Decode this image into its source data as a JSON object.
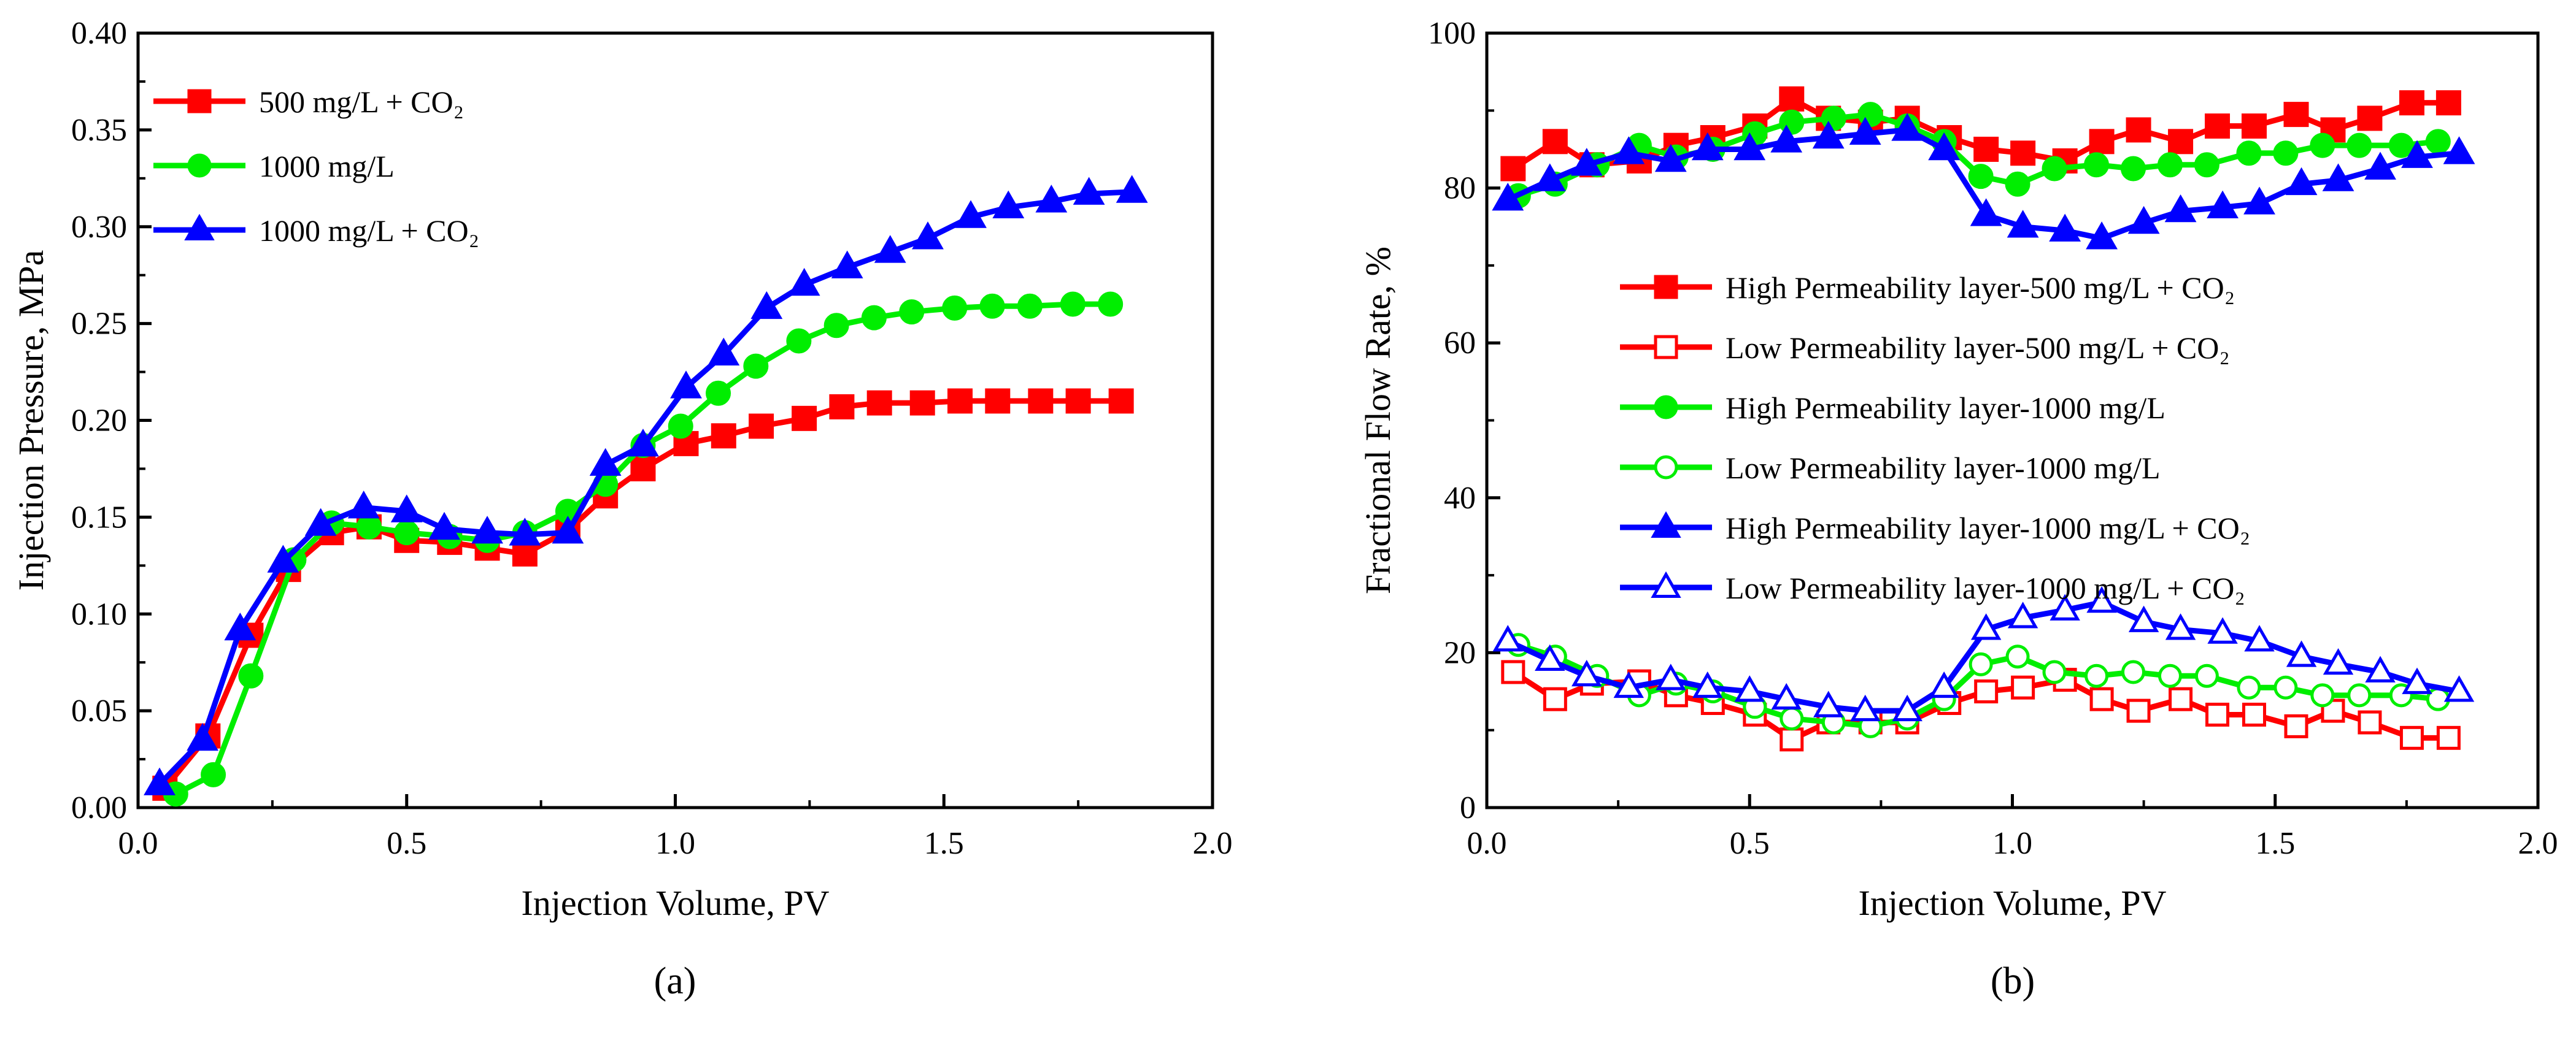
{
  "chart_data": [
    {
      "type": "line",
      "panel_label": "(a)",
      "xlabel": "Injection Volume, PV",
      "ylabel": "Injection Pressure, MPa",
      "xlim": [
        0,
        2.0
      ],
      "ylim": [
        0,
        0.4
      ],
      "xticks": [
        "0.0",
        "0.5",
        "1.0",
        "1.5",
        "2.0"
      ],
      "yticks": [
        "0.00",
        "0.05",
        "0.10",
        "0.15",
        "0.20",
        "0.25",
        "0.30",
        "0.35",
        "0.40"
      ],
      "legend_position": "top-left",
      "grid": false,
      "series": [
        {
          "name": "500 mg/L + CO₂",
          "color": "#ff0000",
          "marker": "square",
          "filled": true,
          "x": [
            0.05,
            0.13,
            0.21,
            0.28,
            0.36,
            0.43,
            0.5,
            0.58,
            0.65,
            0.72,
            0.8,
            0.87,
            0.94,
            1.02,
            1.09,
            1.16,
            1.24,
            1.31,
            1.38,
            1.46,
            1.53,
            1.6,
            1.68,
            1.75,
            1.83
          ],
          "y": [
            0.01,
            0.037,
            0.089,
            0.123,
            0.142,
            0.145,
            0.138,
            0.137,
            0.134,
            0.131,
            0.143,
            0.161,
            0.175,
            0.188,
            0.192,
            0.197,
            0.201,
            0.207,
            0.209,
            0.209,
            0.21,
            0.21,
            0.21,
            0.21,
            0.21
          ]
        },
        {
          "name": "1000 mg/L",
          "color": "#00ee00",
          "marker": "circle",
          "filled": true,
          "x": [
            0.07,
            0.14,
            0.21,
            0.29,
            0.36,
            0.43,
            0.5,
            0.58,
            0.65,
            0.72,
            0.8,
            0.87,
            0.94,
            1.01,
            1.08,
            1.15,
            1.23,
            1.3,
            1.37,
            1.44,
            1.52,
            1.59,
            1.66,
            1.74,
            1.81
          ],
          "y": [
            0.007,
            0.017,
            0.068,
            0.128,
            0.147,
            0.145,
            0.142,
            0.14,
            0.138,
            0.142,
            0.153,
            0.167,
            0.187,
            0.197,
            0.214,
            0.228,
            0.241,
            0.249,
            0.253,
            0.256,
            0.258,
            0.259,
            0.259,
            0.26,
            0.26
          ]
        },
        {
          "name": "1000 mg/L + CO₂",
          "color": "#0000ff",
          "marker": "triangle",
          "filled": true,
          "x": [
            0.04,
            0.12,
            0.19,
            0.27,
            0.34,
            0.42,
            0.5,
            0.57,
            0.65,
            0.72,
            0.8,
            0.87,
            0.94,
            1.02,
            1.09,
            1.17,
            1.24,
            1.32,
            1.4,
            1.47,
            1.55,
            1.62,
            1.7,
            1.77,
            1.85
          ],
          "y": [
            0.012,
            0.035,
            0.092,
            0.127,
            0.146,
            0.155,
            0.153,
            0.144,
            0.142,
            0.141,
            0.142,
            0.177,
            0.187,
            0.217,
            0.234,
            0.258,
            0.27,
            0.279,
            0.287,
            0.294,
            0.305,
            0.31,
            0.313,
            0.317,
            0.318
          ]
        }
      ]
    },
    {
      "type": "line",
      "panel_label": "(b)",
      "xlabel": "Injection Volume, PV",
      "ylabel": "Fractional Flow Rate, %",
      "xlim": [
        0,
        2.0
      ],
      "ylim": [
        0,
        100
      ],
      "xticks": [
        "0.0",
        "0.5",
        "1.0",
        "1.5",
        "2.0"
      ],
      "yticks": [
        "0",
        "20",
        "40",
        "60",
        "80",
        "100"
      ],
      "legend_position": "center-right",
      "grid": false,
      "series": [
        {
          "name": "High Permeability layer-500 mg/L + CO₂",
          "color": "#ff0000",
          "marker": "square",
          "filled": true,
          "x": [
            0.05,
            0.13,
            0.2,
            0.29,
            0.36,
            0.43,
            0.51,
            0.58,
            0.65,
            0.73,
            0.8,
            0.88,
            0.95,
            1.02,
            1.1,
            1.17,
            1.24,
            1.32,
            1.39,
            1.46,
            1.54,
            1.61,
            1.68,
            1.76,
            1.83
          ],
          "y": [
            82.5,
            86,
            83,
            83.5,
            85.5,
            86.5,
            88,
            91.5,
            89,
            88.5,
            89,
            86.5,
            85,
            84.5,
            83.5,
            86,
            87.5,
            86,
            88,
            88,
            89.5,
            87.5,
            89,
            91,
            91
          ]
        },
        {
          "name": "Low Permeability layer-500 mg/L + CO₂",
          "color": "#ff0000",
          "marker": "square",
          "filled": false,
          "x": [
            0.05,
            0.13,
            0.2,
            0.29,
            0.36,
            0.43,
            0.51,
            0.58,
            0.65,
            0.73,
            0.8,
            0.88,
            0.95,
            1.02,
            1.1,
            1.17,
            1.24,
            1.32,
            1.39,
            1.46,
            1.54,
            1.61,
            1.68,
            1.76,
            1.83
          ],
          "y": [
            17.5,
            14,
            16,
            16.3,
            14.5,
            13.5,
            12,
            8.8,
            11,
            11,
            11,
            13.5,
            15,
            15.5,
            16.5,
            14,
            12.5,
            14,
            12,
            12,
            10.5,
            12.5,
            11,
            9,
            9
          ]
        },
        {
          "name": "High Permeability layer-1000 mg/L",
          "color": "#00ee00",
          "marker": "circle",
          "filled": true,
          "x": [
            0.06,
            0.13,
            0.21,
            0.29,
            0.36,
            0.43,
            0.51,
            0.58,
            0.66,
            0.73,
            0.8,
            0.87,
            0.94,
            1.01,
            1.08,
            1.16,
            1.23,
            1.3,
            1.37,
            1.45,
            1.52,
            1.59,
            1.66,
            1.74,
            1.81
          ],
          "y": [
            79,
            80.5,
            83,
            85.5,
            84,
            85,
            87,
            88.5,
            89,
            89.5,
            88,
            86,
            81.5,
            80.5,
            82.5,
            83,
            82.5,
            83,
            83,
            84.5,
            84.5,
            85.5,
            85.5,
            85.5,
            86
          ]
        },
        {
          "name": "Low Permeability layer-1000 mg/L",
          "color": "#00ee00",
          "marker": "circle",
          "filled": false,
          "x": [
            0.06,
            0.13,
            0.21,
            0.29,
            0.36,
            0.43,
            0.51,
            0.58,
            0.66,
            0.73,
            0.8,
            0.87,
            0.94,
            1.01,
            1.08,
            1.16,
            1.23,
            1.3,
            1.37,
            1.45,
            1.52,
            1.59,
            1.66,
            1.74,
            1.81
          ],
          "y": [
            21,
            19.5,
            17,
            14.5,
            16,
            15,
            13,
            11.5,
            11,
            10.5,
            11.5,
            14,
            18.5,
            19.5,
            17.5,
            17,
            17.5,
            17,
            17,
            15.5,
            15.5,
            14.5,
            14.5,
            14.5,
            14
          ]
        },
        {
          "name": "High Permeability layer-1000 mg/L + CO₂",
          "color": "#0000ff",
          "marker": "triangle",
          "filled": true,
          "x": [
            0.04,
            0.12,
            0.19,
            0.27,
            0.35,
            0.42,
            0.5,
            0.57,
            0.65,
            0.72,
            0.8,
            0.87,
            0.95,
            1.02,
            1.1,
            1.17,
            1.25,
            1.32,
            1.4,
            1.47,
            1.55,
            1.62,
            1.7,
            1.77,
            1.85
          ],
          "y": [
            78.5,
            81,
            83,
            84.5,
            83.5,
            85,
            85,
            86,
            86.5,
            87,
            87.5,
            85,
            76.5,
            75,
            74.5,
            73.5,
            75.5,
            77,
            77.5,
            78,
            80.5,
            81,
            82.5,
            84,
            84.5
          ]
        },
        {
          "name": "Low Permeability layer-1000 mg/L + CO₂",
          "color": "#0000ff",
          "marker": "triangle",
          "filled": false,
          "x": [
            0.04,
            0.12,
            0.19,
            0.27,
            0.35,
            0.42,
            0.5,
            0.57,
            0.65,
            0.72,
            0.8,
            0.87,
            0.95,
            1.02,
            1.1,
            1.17,
            1.25,
            1.32,
            1.4,
            1.47,
            1.55,
            1.62,
            1.7,
            1.77,
            1.85
          ],
          "y": [
            21.5,
            19,
            17,
            15.5,
            16.5,
            15.5,
            15,
            14,
            13,
            12.5,
            12.5,
            15.5,
            23,
            24.5,
            25.5,
            26.5,
            24,
            23,
            22.5,
            21.5,
            19.5,
            18.5,
            17.5,
            16,
            15
          ]
        }
      ]
    }
  ]
}
